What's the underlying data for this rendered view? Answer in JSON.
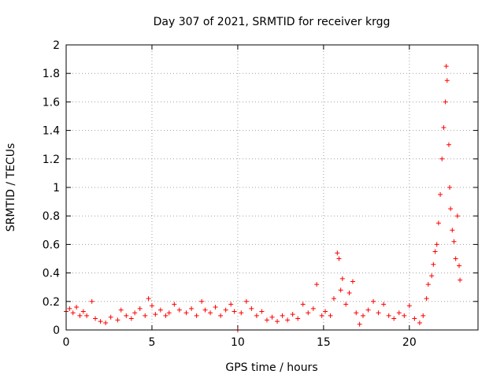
{
  "chart_data": {
    "type": "scatter",
    "title": "Day 307 of 2021, SRMTID for receiver krgg",
    "xlabel": "GPS time / hours",
    "ylabel": "SRMTID / TECUs",
    "xlim": [
      0,
      24
    ],
    "ylim": [
      0,
      2
    ],
    "xticks": [
      0,
      5,
      10,
      15,
      20
    ],
    "yticks": [
      0,
      0.2,
      0.4,
      0.6,
      0.8,
      1,
      1.2,
      1.4,
      1.6,
      1.8,
      2
    ],
    "grid": true,
    "marker": "+",
    "color": "#ff0000",
    "series": [
      {
        "name": "SRMTID",
        "points": [
          [
            0.0,
            0.13
          ],
          [
            0.2,
            0.15
          ],
          [
            0.4,
            0.12
          ],
          [
            0.6,
            0.16
          ],
          [
            0.8,
            0.1
          ],
          [
            1.0,
            0.13
          ],
          [
            1.2,
            0.1
          ],
          [
            1.5,
            0.2
          ],
          [
            1.7,
            0.08
          ],
          [
            2.0,
            0.06
          ],
          [
            2.3,
            0.05
          ],
          [
            2.6,
            0.09
          ],
          [
            3.0,
            0.07
          ],
          [
            3.2,
            0.14
          ],
          [
            3.5,
            0.1
          ],
          [
            3.8,
            0.08
          ],
          [
            4.0,
            0.12
          ],
          [
            4.3,
            0.15
          ],
          [
            4.6,
            0.1
          ],
          [
            4.8,
            0.22
          ],
          [
            5.0,
            0.17
          ],
          [
            5.2,
            0.11
          ],
          [
            5.5,
            0.14
          ],
          [
            5.8,
            0.1
          ],
          [
            6.0,
            0.12
          ],
          [
            6.3,
            0.18
          ],
          [
            6.6,
            0.14
          ],
          [
            7.0,
            0.12
          ],
          [
            7.3,
            0.15
          ],
          [
            7.6,
            0.1
          ],
          [
            7.9,
            0.2
          ],
          [
            8.1,
            0.14
          ],
          [
            8.4,
            0.12
          ],
          [
            8.7,
            0.16
          ],
          [
            9.0,
            0.1
          ],
          [
            9.3,
            0.14
          ],
          [
            9.6,
            0.18
          ],
          [
            9.8,
            0.13
          ],
          [
            10.0,
            0.0
          ],
          [
            10.2,
            0.12
          ],
          [
            10.5,
            0.2
          ],
          [
            10.8,
            0.15
          ],
          [
            11.1,
            0.1
          ],
          [
            11.4,
            0.13
          ],
          [
            11.7,
            0.07
          ],
          [
            12.0,
            0.09
          ],
          [
            12.3,
            0.06
          ],
          [
            12.6,
            0.1
          ],
          [
            12.9,
            0.07
          ],
          [
            13.2,
            0.11
          ],
          [
            13.5,
            0.08
          ],
          [
            13.8,
            0.18
          ],
          [
            14.1,
            0.12
          ],
          [
            14.4,
            0.15
          ],
          [
            14.6,
            0.32
          ],
          [
            14.9,
            0.1
          ],
          [
            15.1,
            0.13
          ],
          [
            15.4,
            0.1
          ],
          [
            15.6,
            0.22
          ],
          [
            15.8,
            0.54
          ],
          [
            15.9,
            0.5
          ],
          [
            16.0,
            0.28
          ],
          [
            16.1,
            0.36
          ],
          [
            16.3,
            0.18
          ],
          [
            16.5,
            0.26
          ],
          [
            16.7,
            0.34
          ],
          [
            16.9,
            0.12
          ],
          [
            17.1,
            0.04
          ],
          [
            17.3,
            0.1
          ],
          [
            17.6,
            0.14
          ],
          [
            17.9,
            0.2
          ],
          [
            18.2,
            0.12
          ],
          [
            18.5,
            0.18
          ],
          [
            18.8,
            0.1
          ],
          [
            19.1,
            0.08
          ],
          [
            19.4,
            0.12
          ],
          [
            19.7,
            0.1
          ],
          [
            20.0,
            0.17
          ],
          [
            20.3,
            0.08
          ],
          [
            20.6,
            0.05
          ],
          [
            20.8,
            0.1
          ],
          [
            21.0,
            0.22
          ],
          [
            21.1,
            0.32
          ],
          [
            21.3,
            0.38
          ],
          [
            21.4,
            0.46
          ],
          [
            21.5,
            0.55
          ],
          [
            21.6,
            0.6
          ],
          [
            21.7,
            0.75
          ],
          [
            21.8,
            0.95
          ],
          [
            21.9,
            1.2
          ],
          [
            22.0,
            1.42
          ],
          [
            22.1,
            1.6
          ],
          [
            22.15,
            1.85
          ],
          [
            22.2,
            1.75
          ],
          [
            22.3,
            1.3
          ],
          [
            22.35,
            1.0
          ],
          [
            22.4,
            0.85
          ],
          [
            22.5,
            0.7
          ],
          [
            22.6,
            0.62
          ],
          [
            22.7,
            0.5
          ],
          [
            22.8,
            0.8
          ],
          [
            22.9,
            0.45
          ],
          [
            22.95,
            0.35
          ]
        ]
      }
    ]
  }
}
